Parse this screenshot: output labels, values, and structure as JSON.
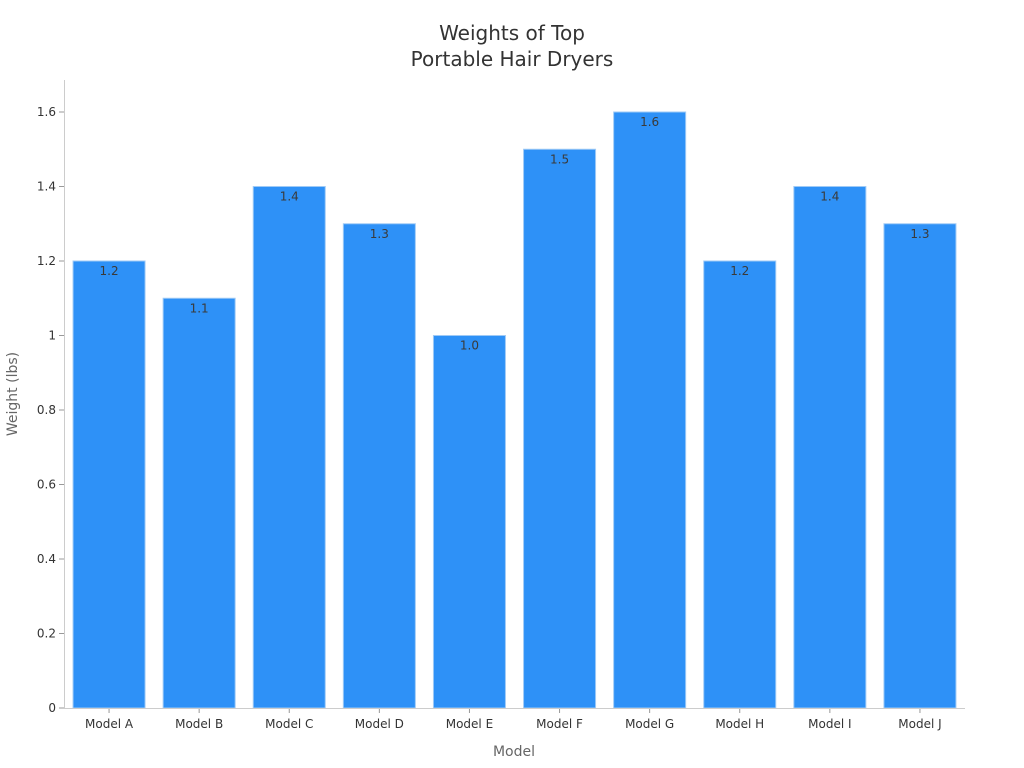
{
  "chart_data": {
    "type": "bar",
    "title": "Weights of Top Portable Hair Dryers",
    "title_lines": [
      "Weights of Top",
      "Portable Hair Dryers"
    ],
    "xlabel": "Model",
    "ylabel": "Weight (lbs)",
    "categories": [
      "Model A",
      "Model B",
      "Model C",
      "Model D",
      "Model E",
      "Model F",
      "Model G",
      "Model H",
      "Model I",
      "Model J"
    ],
    "values": [
      1.2,
      1.1,
      1.4,
      1.3,
      1.0,
      1.5,
      1.6,
      1.2,
      1.4,
      1.3
    ],
    "value_labels": [
      "1.2",
      "1.1",
      "1.4",
      "1.3",
      "1.0",
      "1.5",
      "1.6",
      "1.2",
      "1.4",
      "1.3"
    ],
    "yticks": [
      0,
      0.2,
      0.4,
      0.6,
      0.8,
      1,
      1.2,
      1.4,
      1.6
    ],
    "ytick_labels": [
      "0",
      "0.2",
      "0.4",
      "0.6",
      "0.8",
      "1",
      "1.2",
      "1.4",
      "1.6"
    ],
    "ylim": [
      0,
      1.68
    ],
    "grid": false,
    "legend": null,
    "bar_color": "#2e91f7"
  }
}
